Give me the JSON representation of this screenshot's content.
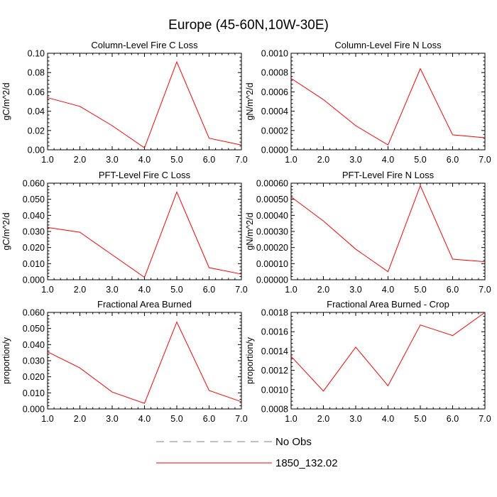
{
  "figure_title": "Europe (45-60N,10W-30E)",
  "colors": {
    "series": "#ff0000",
    "obs": "#7f7f9f",
    "axis": "#000000"
  },
  "legend": {
    "entries": [
      {
        "label": "No Obs",
        "style": "dashed"
      },
      {
        "label": "1850_132.02",
        "style": "solid"
      }
    ]
  },
  "chart_data": [
    {
      "type": "line",
      "title": "Column-Level Fire C Loss",
      "ylabel": "gC/m^2/d",
      "xlim": [
        1,
        7
      ],
      "ylim": [
        0,
        0.1
      ],
      "x_ticks": [
        "1.0",
        "2.0",
        "3.0",
        "4.0",
        "5.0",
        "6.0",
        "7.0"
      ],
      "y_ticks": [
        "0.00",
        "0.02",
        "0.04",
        "0.06",
        "0.08",
        "0.10"
      ],
      "series": [
        {
          "name": "1850_132.02",
          "x": [
            1,
            2,
            3,
            4,
            5,
            6,
            7
          ],
          "values": [
            0.054,
            0.045,
            0.025,
            0.002,
            0.091,
            0.012,
            0.005
          ]
        }
      ]
    },
    {
      "type": "line",
      "title": "Column-Level Fire N Loss",
      "ylabel": "gN/m^2/d",
      "xlim": [
        1,
        7
      ],
      "ylim": [
        0,
        0.001
      ],
      "x_ticks": [
        "1.0",
        "2.0",
        "3.0",
        "4.0",
        "5.0",
        "6.0",
        "7.0"
      ],
      "y_ticks": [
        "0.0000",
        "0.0002",
        "0.0004",
        "0.0006",
        "0.0008",
        "0.0010"
      ],
      "series": [
        {
          "name": "1850_132.02",
          "x": [
            1,
            2,
            3,
            4,
            5,
            6,
            7
          ],
          "values": [
            0.00074,
            0.00052,
            0.00025,
            5e-05,
            0.00084,
            0.000155,
            0.000125
          ]
        }
      ]
    },
    {
      "type": "line",
      "title": "PFT-Level Fire C Loss",
      "ylabel": "gC/m^2/d",
      "xlim": [
        1,
        7
      ],
      "ylim": [
        0,
        0.06
      ],
      "x_ticks": [
        "1.0",
        "2.0",
        "3.0",
        "4.0",
        "5.0",
        "6.0",
        "7.0"
      ],
      "y_ticks": [
        "0.000",
        "0.010",
        "0.020",
        "0.030",
        "0.040",
        "0.050",
        "0.060"
      ],
      "series": [
        {
          "name": "1850_132.02",
          "x": [
            1,
            2,
            3,
            4,
            5,
            6,
            7
          ],
          "values": [
            0.0325,
            0.0295,
            0.0155,
            0.0015,
            0.0545,
            0.0075,
            0.0035
          ]
        }
      ]
    },
    {
      "type": "line",
      "title": "PFT-Level Fire N Loss",
      "ylabel": "gN/m^2/d",
      "xlim": [
        1,
        7
      ],
      "ylim": [
        0,
        0.0006
      ],
      "x_ticks": [
        "1.0",
        "2.0",
        "3.0",
        "4.0",
        "5.0",
        "6.0",
        "7.0"
      ],
      "y_ticks": [
        "0.00000",
        "0.00010",
        "0.00020",
        "0.00030",
        "0.00040",
        "0.00050",
        "0.00060"
      ],
      "series": [
        {
          "name": "1850_132.02",
          "x": [
            1,
            2,
            3,
            4,
            5,
            6,
            7
          ],
          "values": [
            0.000515,
            0.000365,
            0.00019,
            5e-05,
            0.000585,
            0.000128,
            0.000112
          ]
        }
      ]
    },
    {
      "type": "line",
      "title": "Fractional Area Burned",
      "ylabel": "proportion/y",
      "xlim": [
        1,
        7
      ],
      "ylim": [
        0,
        0.06
      ],
      "x_ticks": [
        "1.0",
        "2.0",
        "3.0",
        "4.0",
        "5.0",
        "6.0",
        "7.0"
      ],
      "y_ticks": [
        "0.000",
        "0.010",
        "0.020",
        "0.030",
        "0.040",
        "0.050",
        "0.060"
      ],
      "series": [
        {
          "name": "1850_132.02",
          "x": [
            1,
            2,
            3,
            4,
            5,
            6,
            7
          ],
          "values": [
            0.0355,
            0.0255,
            0.0105,
            0.0035,
            0.054,
            0.0115,
            0.0045
          ]
        }
      ]
    },
    {
      "type": "line",
      "title": "Fractional Area Burned - Crop",
      "ylabel": "proportion/y",
      "xlim": [
        1,
        7
      ],
      "ylim": [
        0.0008,
        0.0018
      ],
      "x_ticks": [
        "1.0",
        "2.0",
        "3.0",
        "4.0",
        "5.0",
        "6.0",
        "7.0"
      ],
      "y_ticks": [
        "0.0008",
        "0.0010",
        "0.0012",
        "0.0014",
        "0.0016",
        "0.0018"
      ],
      "series": [
        {
          "name": "1850_132.02",
          "x": [
            1,
            2,
            3,
            4,
            5,
            6,
            7
          ],
          "values": [
            0.001345,
            0.000985,
            0.00144,
            0.00104,
            0.00167,
            0.00156,
            0.0018
          ]
        }
      ]
    }
  ]
}
